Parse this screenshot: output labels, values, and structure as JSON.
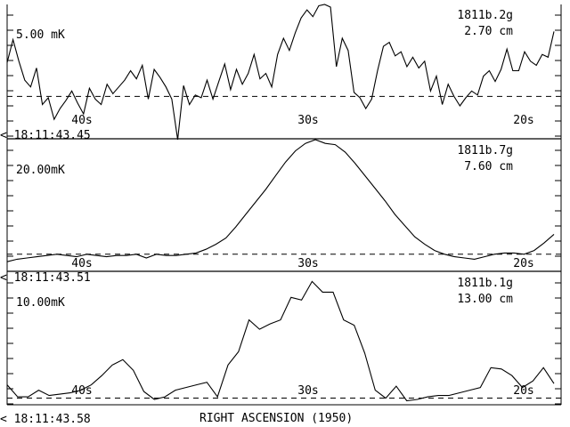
{
  "footer": {
    "xlabel": "RIGHT ASCENSION (1950)"
  },
  "chart_data": [
    {
      "type": "line",
      "scale": "5.00 mK",
      "id_label": "1811b.2g",
      "wavelength": "2.70 cm",
      "time_label": "< 18:11:43.45",
      "x_ticks": [
        "40s",
        "30s",
        "20s"
      ],
      "ylim": [
        0,
        10
      ],
      "baseline": 3.2,
      "values": [
        5.7,
        7.4,
        5.8,
        4.4,
        3.9,
        5.3,
        2.6,
        3.1,
        1.5,
        2.3,
        2.9,
        3.6,
        2.7,
        1.9,
        3.8,
        3.0,
        2.6,
        4.1,
        3.4,
        3.9,
        4.4,
        5.1,
        4.5,
        5.5,
        3.0,
        5.2,
        4.6,
        3.9,
        3.0,
        0.0,
        4.0,
        2.6,
        3.3,
        3.1,
        4.4,
        3.0,
        4.3,
        5.6,
        3.7,
        5.2,
        4.1,
        4.9,
        6.3,
        4.5,
        4.9,
        3.9,
        6.3,
        7.5,
        6.6,
        7.9,
        9.0,
        9.6,
        9.1,
        9.9,
        10.0,
        9.8,
        5.4,
        7.5,
        6.6,
        3.5,
        3.1,
        2.3,
        3.0,
        5.1,
        6.9,
        7.2,
        6.2,
        6.5,
        5.4,
        6.1,
        5.3,
        5.8,
        3.6,
        4.7,
        2.6,
        4.1,
        3.2,
        2.5,
        3.1,
        3.6,
        3.3,
        4.7,
        5.1,
        4.3,
        5.2,
        6.7,
        5.1,
        5.1,
        6.5,
        5.8,
        5.5,
        6.3,
        6.1,
        8.0
      ]
    },
    {
      "type": "line",
      "scale": "20.00mK",
      "id_label": "1811b.7g",
      "wavelength": "7.60 cm",
      "time_label": "< 18:11:43.51",
      "x_ticks": [
        "40s",
        "30s",
        "20s"
      ],
      "ylim": [
        0,
        10
      ],
      "baseline": 0.8,
      "values": [
        0.2,
        0.4,
        0.5,
        0.6,
        0.7,
        0.8,
        0.7,
        0.6,
        0.8,
        0.7,
        0.6,
        0.7,
        0.7,
        0.8,
        0.5,
        0.8,
        0.7,
        0.7,
        0.8,
        0.9,
        1.2,
        1.6,
        2.1,
        3.0,
        4.0,
        5.0,
        6.0,
        7.1,
        8.2,
        9.1,
        9.7,
        10.0,
        9.7,
        9.6,
        9.0,
        8.1,
        7.1,
        6.1,
        5.1,
        4.0,
        3.1,
        2.2,
        1.6,
        1.1,
        0.8,
        0.6,
        0.5,
        0.4,
        0.6,
        0.8,
        0.9,
        0.9,
        0.8,
        1.1,
        1.7,
        2.4
      ]
    },
    {
      "type": "line",
      "scale": "10.00mK",
      "id_label": "1811b.1g",
      "wavelength": "13.00 cm",
      "time_label": "< 18:11:43.58",
      "x_ticks": [
        "40s",
        "30s",
        "20s"
      ],
      "ylim": [
        0,
        10
      ],
      "baseline": 0.5,
      "values": [
        1.5,
        0.6,
        0.6,
        1.1,
        0.7,
        0.8,
        0.9,
        1.1,
        1.5,
        2.2,
        3.0,
        3.4,
        2.6,
        1.0,
        0.4,
        0.6,
        1.1,
        1.3,
        1.5,
        1.7,
        0.6,
        3.0,
        4.0,
        6.4,
        5.7,
        6.1,
        6.4,
        8.1,
        7.9,
        9.3,
        8.5,
        8.5,
        6.4,
        6.0,
        3.9,
        1.1,
        0.5,
        1.4,
        0.3,
        0.4,
        0.6,
        0.7,
        0.7,
        0.9,
        1.1,
        1.3,
        2.8,
        2.7,
        2.2,
        1.3,
        1.8,
        2.8,
        1.6
      ]
    }
  ]
}
